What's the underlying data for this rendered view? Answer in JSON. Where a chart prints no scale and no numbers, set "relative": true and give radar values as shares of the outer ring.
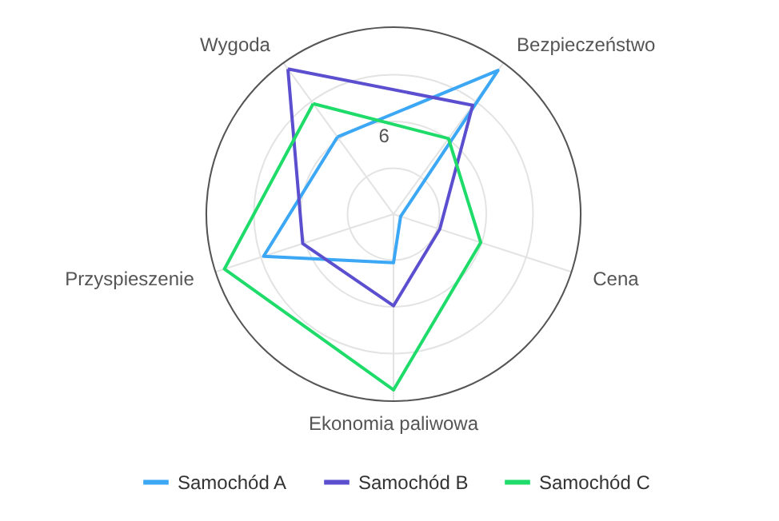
{
  "chart_data": {
    "type": "radar",
    "relative": true,
    "categories": [
      "Wygoda",
      "Bezpieczeństwo",
      "Cena",
      "Ekonomia paliwowa",
      "Przyspieszenie"
    ],
    "series": [
      {
        "name": "Samochód A",
        "color": "#3ba7f5",
        "values": [
          0.51,
          0.95,
          0.04,
          0.26,
          0.73
        ]
      },
      {
        "name": "Samochód B",
        "color": "#5b4fcf",
        "values": [
          0.96,
          0.72,
          0.26,
          0.49,
          0.51
        ]
      },
      {
        "name": "Samochód C",
        "color": "#1fdc6a",
        "values": [
          0.73,
          0.5,
          0.49,
          0.94,
          0.95
        ]
      }
    ],
    "annotations": [
      "6"
    ],
    "legend": "bottom",
    "grid": true
  }
}
